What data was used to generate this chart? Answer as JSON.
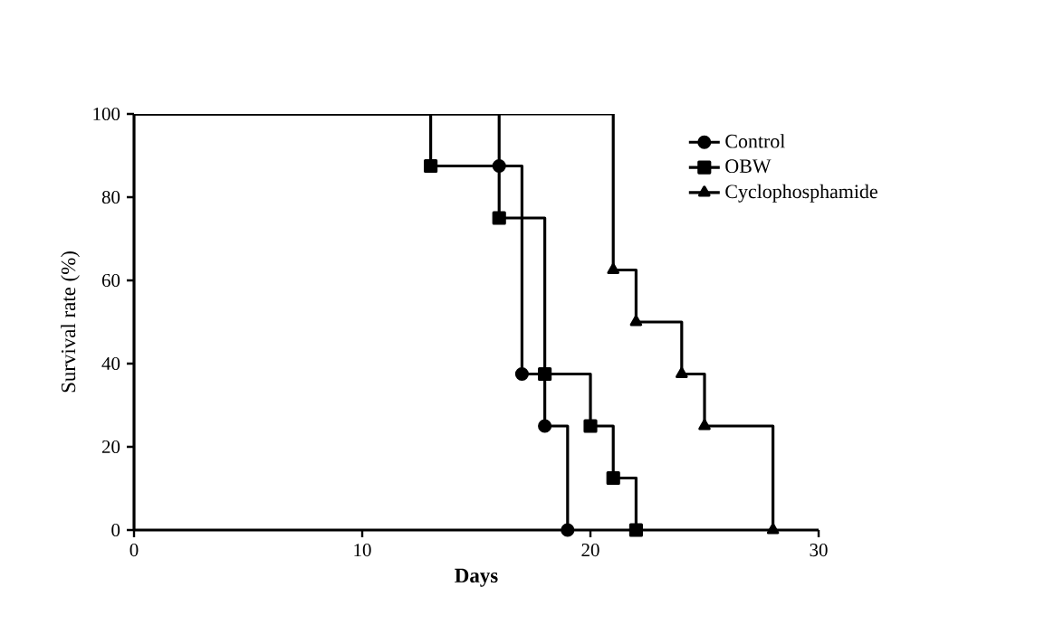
{
  "chart_data": {
    "type": "step",
    "xlabel": "Days",
    "ylabel": "Survival rate (%)",
    "xlim": [
      0,
      30
    ],
    "ylim": [
      0,
      100
    ],
    "xticks": [
      0,
      10,
      20,
      30
    ],
    "yticks": [
      0,
      20,
      40,
      60,
      80,
      100
    ],
    "grid": false,
    "legend": "top right",
    "line_style": "solid",
    "series": [
      {
        "name": "Control",
        "color": "#000000",
        "marker": "circle",
        "x": [
          0,
          16,
          17,
          18,
          19
        ],
        "values": [
          100,
          87.5,
          37.5,
          25,
          0
        ]
      },
      {
        "name": "OBW",
        "color": "#000000",
        "marker": "square",
        "x": [
          0,
          13,
          16,
          18,
          20,
          21,
          22
        ],
        "values": [
          100,
          87.5,
          75,
          37.5,
          25,
          12.5,
          0
        ]
      },
      {
        "name": "Cyclophosphamide",
        "color": "#000000",
        "marker": "triangle",
        "x": [
          0,
          21,
          22,
          24,
          25,
          28
        ],
        "values": [
          100,
          62.5,
          50,
          37.5,
          25,
          0
        ]
      }
    ]
  }
}
